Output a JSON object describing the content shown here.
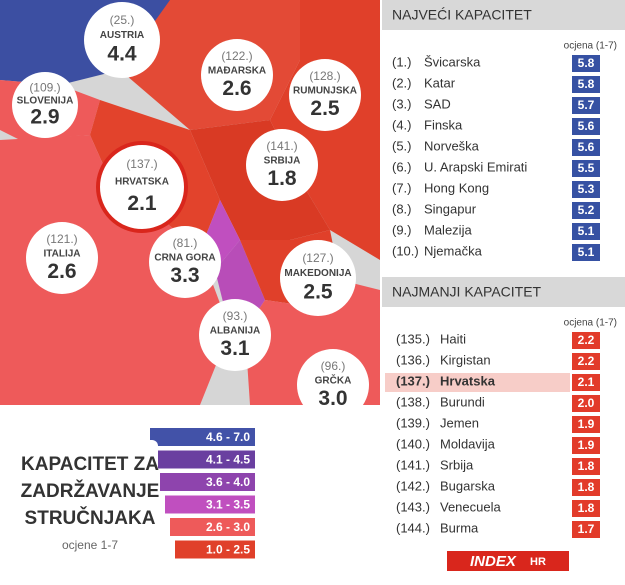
{
  "map": {
    "countries": [
      {
        "rank": "(25.)",
        "name": "AUSTRIA",
        "score": "4.4"
      },
      {
        "rank": "(109.)",
        "name": "SLOVENIJA",
        "score": "2.9"
      },
      {
        "rank": "(122.)",
        "name": "MAĐARSKA",
        "score": "2.6"
      },
      {
        "rank": "(128.)",
        "name": "RUMUNJSKA",
        "score": "2.5"
      },
      {
        "rank": "(141.)",
        "name": "SRBIJA",
        "score": "1.8"
      },
      {
        "rank": "(137.)",
        "name": "HRVATSKA",
        "score": "2.1"
      },
      {
        "rank": "(121.)",
        "name": "ITALIJA",
        "score": "2.6"
      },
      {
        "rank": "(81.)",
        "name": "CRNA GORA",
        "score": "3.3"
      },
      {
        "rank": "(127.)",
        "name": "MAKEDONIJA",
        "score": "2.5"
      },
      {
        "rank": "(93.)",
        "name": "ALBANIJA",
        "score": "3.1"
      },
      {
        "rank": "(96.)",
        "name": "GRČKA",
        "score": "3.0"
      }
    ]
  },
  "top": {
    "title": "NAJVEĆI KAPACITET",
    "column": "ocjena (1-7)",
    "rows": [
      [
        "(1.)",
        "Švicarska",
        "5.8"
      ],
      [
        "(2.)",
        "Katar",
        "5.8"
      ],
      [
        "(3.)",
        "SAD",
        "5.7"
      ],
      [
        "(4.)",
        "Finska",
        "5.6"
      ],
      [
        "(5.)",
        "Norveška",
        "5.6"
      ],
      [
        "(6.)",
        "U. Arapski Emirati",
        "5.5"
      ],
      [
        "(7.)",
        "Hong Kong",
        "5.3"
      ],
      [
        "(8.)",
        "Singapur",
        "5.2"
      ],
      [
        "(9.)",
        "Malezija",
        "5.1"
      ],
      [
        "(10.)",
        "Njemačka",
        "5.1"
      ]
    ]
  },
  "bottom": {
    "title": "NAJMANJI KAPACITET",
    "column": "ocjena (1-7)",
    "rows": [
      [
        "(135.)",
        "Haiti",
        "2.2"
      ],
      [
        "(136.)",
        "Kirgistan",
        "2.2"
      ],
      [
        "(137.)",
        "Hrvatska",
        "2.1"
      ],
      [
        "(138.)",
        "Burundi",
        "2.0"
      ],
      [
        "(139.)",
        "Jemen",
        "1.9"
      ],
      [
        "(140.)",
        "Moldavija",
        "1.9"
      ],
      [
        "(141.)",
        "Srbija",
        "1.8"
      ],
      [
        "(142.)",
        "Bugarska",
        "1.8"
      ],
      [
        "(143.)",
        "Venecuela",
        "1.8"
      ],
      [
        "(144.)",
        "Burma",
        "1.7"
      ]
    ]
  },
  "legend": {
    "title": [
      "KAPACITET ZA",
      "ZADRŽAVANJE",
      "STRUČNJAKA"
    ],
    "subtitle": "ocjene 1-7",
    "ranges": [
      "4.6 - 7.0",
      "4.1 - 4.5",
      "3.6 - 4.0",
      "3.1 - 3.5",
      "2.6 - 3.0",
      "1.0 - 2.5"
    ]
  },
  "logo": {
    "main": "INDEX",
    "suffix": "HR"
  }
}
